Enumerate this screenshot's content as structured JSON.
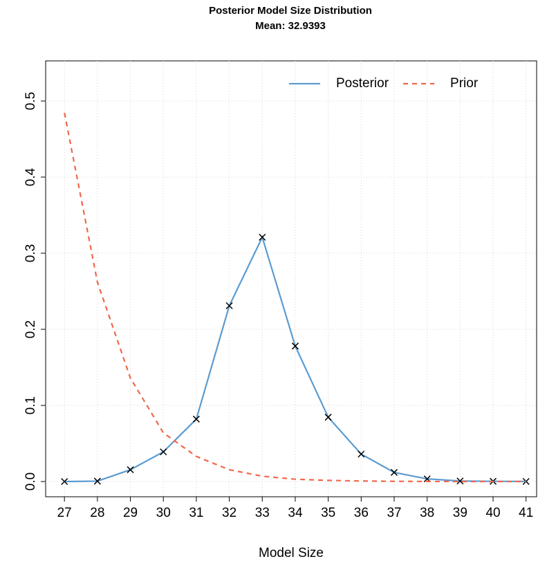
{
  "chart_data": {
    "type": "line",
    "title": "Posterior Model Size Distribution",
    "subtitle": "Mean: 32.9393",
    "x_label": "Model Size",
    "x": [
      27,
      28,
      29,
      30,
      31,
      32,
      33,
      34,
      35,
      36,
      37,
      38,
      39,
      40,
      41
    ],
    "series": [
      {
        "name": "Posterior",
        "color": "#5b9bd0",
        "dash": false,
        "marker": "x",
        "values": [
          0,
          0.0005,
          0.0155,
          0.039,
          0.082,
          0.231,
          0.321,
          0.178,
          0.0845,
          0.036,
          0.012,
          0.0035,
          0.0007,
          0.0003,
          0.0001
        ]
      },
      {
        "name": "Prior",
        "color": "#f0674b",
        "dash": true,
        "values": [
          0.4845,
          0.262,
          0.136,
          0.064,
          0.033,
          0.0155,
          0.007,
          0.003,
          0.0015,
          0.0007,
          0.0003,
          0.0001,
          0,
          0,
          0
        ]
      }
    ],
    "xlim": [
      26.43,
      41.32
    ],
    "ylim": [
      -0.02,
      0.5527
    ],
    "xticks": [
      27,
      28,
      29,
      30,
      31,
      32,
      33,
      34,
      35,
      36,
      37,
      38,
      39,
      40,
      41
    ],
    "yticks": [
      {
        "value": 0,
        "label": "0.0"
      },
      0.1,
      0.2,
      0.3,
      0.4,
      0.5
    ],
    "grid": true,
    "legend": "top-right"
  }
}
